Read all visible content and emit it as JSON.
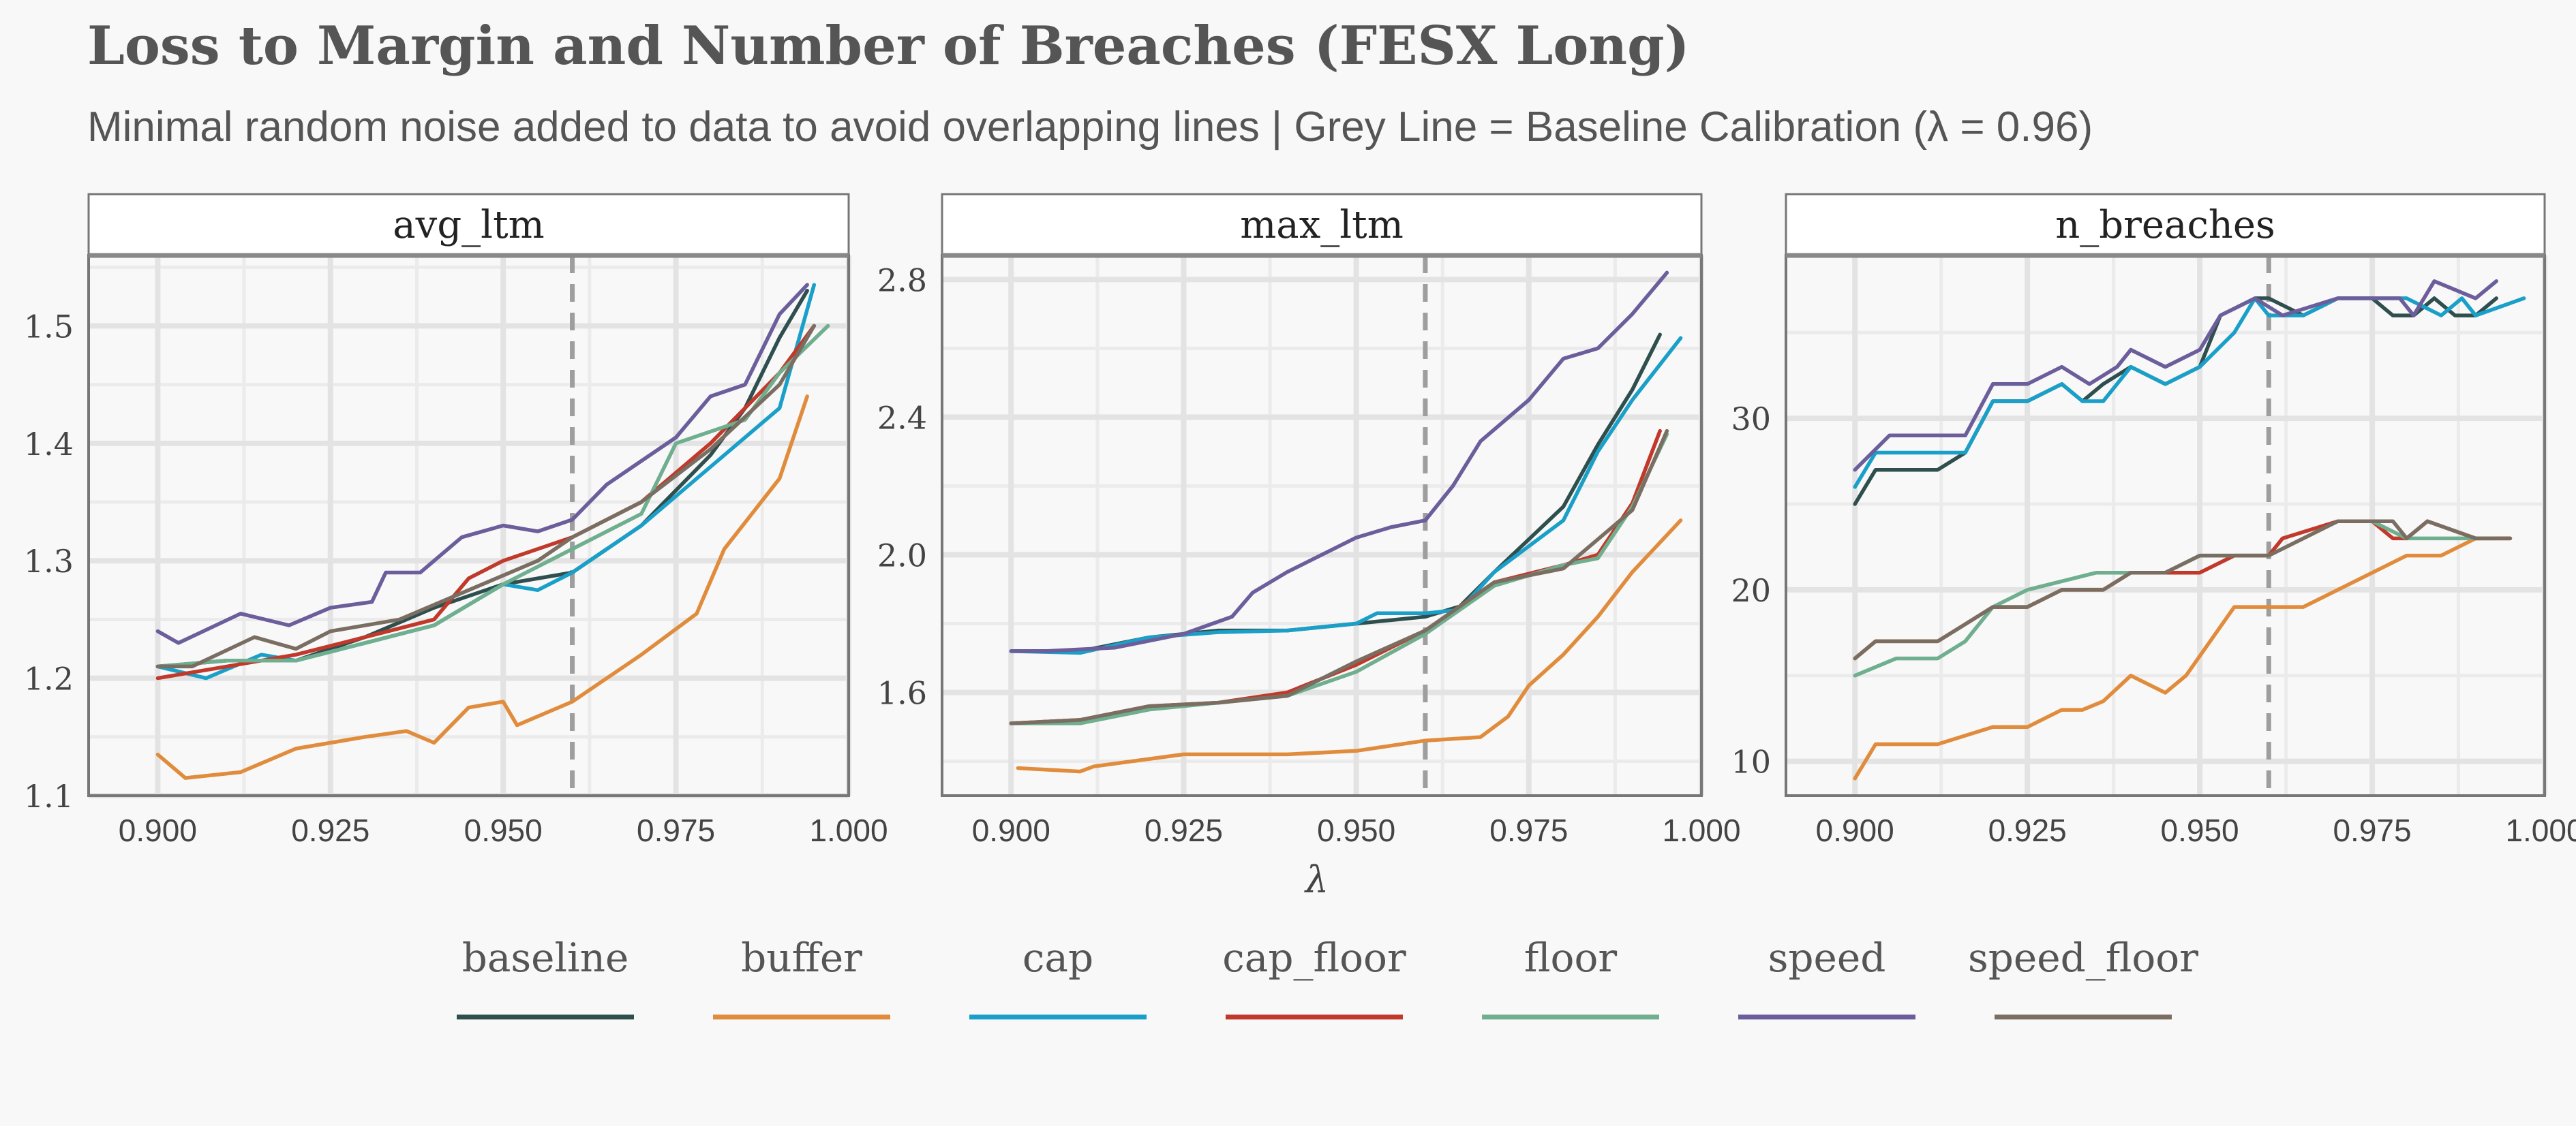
{
  "title": "Loss to Margin and Number of Breaches (FESX Long)",
  "subtitle": "Minimal random noise added to data to avoid overlapping lines | Grey Line = Baseline Calibration (λ = 0.96)",
  "xlabel": "λ",
  "colors": {
    "baseline": "#2f4f4f",
    "buffer": "#e08c3c",
    "cap": "#1aa0c8",
    "cap_floor": "#c0392b",
    "floor": "#6fae8e",
    "speed": "#6b5e9b",
    "speed_floor": "#7a6e62",
    "reference_line": "#9e9e9e"
  },
  "legend": [
    "baseline",
    "buffer",
    "cap",
    "cap_floor",
    "floor",
    "speed",
    "speed_floor"
  ],
  "chart_data": [
    {
      "type": "line",
      "panel": "avg_ltm",
      "xlim": [
        0.89,
        1.0
      ],
      "ylim": [
        1.1,
        1.56
      ],
      "xticks": [
        0.9,
        0.925,
        0.95,
        0.975,
        1.0
      ],
      "xtick_labels": [
        "0.900",
        "0.925",
        "0.950",
        "0.975",
        "1.000"
      ],
      "yticks": [
        1.1,
        1.2,
        1.3,
        1.4,
        1.5
      ],
      "ytick_labels": [
        "1.1",
        "1.2",
        "1.3",
        "1.4",
        "1.5"
      ],
      "reference_x": 0.96,
      "series": [
        {
          "name": "baseline",
          "x": [
            0.9,
            0.91,
            0.92,
            0.93,
            0.94,
            0.95,
            0.96,
            0.97,
            0.98,
            0.985,
            0.99,
            0.994
          ],
          "y": [
            1.21,
            1.215,
            1.215,
            1.235,
            1.26,
            1.28,
            1.29,
            1.33,
            1.39,
            1.43,
            1.49,
            1.53
          ]
        },
        {
          "name": "buffer",
          "x": [
            0.9,
            0.904,
            0.912,
            0.92,
            0.93,
            0.936,
            0.94,
            0.945,
            0.95,
            0.952,
            0.96,
            0.97,
            0.978,
            0.982,
            0.99,
            0.994
          ],
          "y": [
            1.135,
            1.115,
            1.12,
            1.14,
            1.15,
            1.155,
            1.145,
            1.175,
            1.18,
            1.16,
            1.18,
            1.22,
            1.255,
            1.31,
            1.37,
            1.44
          ]
        },
        {
          "name": "cap",
          "x": [
            0.9,
            0.907,
            0.915,
            0.92,
            0.93,
            0.94,
            0.95,
            0.955,
            0.96,
            0.97,
            0.98,
            0.99,
            0.995
          ],
          "y": [
            1.21,
            1.2,
            1.22,
            1.215,
            1.23,
            1.245,
            1.28,
            1.275,
            1.29,
            1.33,
            1.38,
            1.43,
            1.535
          ]
        },
        {
          "name": "cap_floor",
          "x": [
            0.9,
            0.91,
            0.92,
            0.93,
            0.94,
            0.945,
            0.95,
            0.96,
            0.97,
            0.98,
            0.99,
            0.995
          ],
          "y": [
            1.2,
            1.21,
            1.22,
            1.235,
            1.25,
            1.285,
            1.3,
            1.32,
            1.35,
            1.4,
            1.46,
            1.5
          ]
        },
        {
          "name": "floor",
          "x": [
            0.9,
            0.91,
            0.92,
            0.93,
            0.94,
            0.95,
            0.96,
            0.97,
            0.975,
            0.985,
            0.99,
            0.997
          ],
          "y": [
            1.21,
            1.215,
            1.215,
            1.23,
            1.245,
            1.28,
            1.31,
            1.34,
            1.4,
            1.42,
            1.46,
            1.5
          ]
        },
        {
          "name": "speed",
          "x": [
            0.9,
            0.903,
            0.912,
            0.919,
            0.925,
            0.931,
            0.933,
            0.938,
            0.944,
            0.95,
            0.955,
            0.96,
            0.965,
            0.97,
            0.975,
            0.98,
            0.985,
            0.99,
            0.994
          ],
          "y": [
            1.24,
            1.23,
            1.255,
            1.245,
            1.26,
            1.265,
            1.29,
            1.29,
            1.32,
            1.33,
            1.325,
            1.335,
            1.365,
            1.385,
            1.405,
            1.44,
            1.45,
            1.51,
            1.535
          ]
        },
        {
          "name": "speed_floor",
          "x": [
            0.9,
            0.905,
            0.914,
            0.92,
            0.925,
            0.935,
            0.945,
            0.955,
            0.96,
            0.97,
            0.98,
            0.99,
            0.995
          ],
          "y": [
            1.21,
            1.21,
            1.235,
            1.225,
            1.24,
            1.25,
            1.275,
            1.3,
            1.32,
            1.35,
            1.395,
            1.45,
            1.5
          ]
        }
      ]
    },
    {
      "type": "line",
      "panel": "max_ltm",
      "xlim": [
        0.89,
        1.0
      ],
      "ylim": [
        1.3,
        2.87
      ],
      "xticks": [
        0.9,
        0.925,
        0.95,
        0.975,
        1.0
      ],
      "xtick_labels": [
        "0.900",
        "0.925",
        "0.950",
        "0.975",
        "1.000"
      ],
      "yticks": [
        1.6,
        2.0,
        2.4,
        2.8
      ],
      "ytick_labels": [
        "1.6",
        "2.0",
        "2.4",
        "2.8"
      ],
      "reference_x": 0.96,
      "series": [
        {
          "name": "baseline",
          "x": [
            0.9,
            0.91,
            0.92,
            0.93,
            0.94,
            0.95,
            0.96,
            0.965,
            0.97,
            0.98,
            0.985,
            0.99,
            0.994
          ],
          "y": [
            1.72,
            1.72,
            1.76,
            1.78,
            1.78,
            1.8,
            1.82,
            1.85,
            1.95,
            2.14,
            2.32,
            2.48,
            2.64
          ]
        },
        {
          "name": "buffer",
          "x": [
            0.901,
            0.91,
            0.912,
            0.925,
            0.93,
            0.94,
            0.95,
            0.96,
            0.968,
            0.972,
            0.975,
            0.98,
            0.985,
            0.99,
            0.997
          ],
          "y": [
            1.38,
            1.37,
            1.385,
            1.42,
            1.42,
            1.42,
            1.43,
            1.46,
            1.47,
            1.53,
            1.62,
            1.71,
            1.82,
            1.95,
            2.1
          ]
        },
        {
          "name": "cap",
          "x": [
            0.9,
            0.91,
            0.92,
            0.93,
            0.94,
            0.95,
            0.953,
            0.96,
            0.965,
            0.97,
            0.98,
            0.985,
            0.99,
            0.997
          ],
          "y": [
            1.72,
            1.715,
            1.76,
            1.775,
            1.78,
            1.8,
            1.83,
            1.83,
            1.84,
            1.95,
            2.1,
            2.3,
            2.45,
            2.63
          ]
        },
        {
          "name": "cap_floor",
          "x": [
            0.9,
            0.91,
            0.92,
            0.93,
            0.94,
            0.95,
            0.96,
            0.97,
            0.98,
            0.985,
            0.99,
            0.994
          ],
          "y": [
            1.51,
            1.52,
            1.56,
            1.57,
            1.6,
            1.68,
            1.78,
            1.92,
            1.97,
            2.0,
            2.15,
            2.36
          ]
        },
        {
          "name": "floor",
          "x": [
            0.9,
            0.91,
            0.92,
            0.93,
            0.94,
            0.95,
            0.96,
            0.97,
            0.98,
            0.985,
            0.99,
            0.995
          ],
          "y": [
            1.51,
            1.51,
            1.55,
            1.57,
            1.59,
            1.66,
            1.77,
            1.91,
            1.97,
            1.99,
            2.14,
            2.35
          ]
        },
        {
          "name": "speed",
          "x": [
            0.9,
            0.905,
            0.915,
            0.925,
            0.932,
            0.935,
            0.94,
            0.945,
            0.95,
            0.955,
            0.96,
            0.964,
            0.968,
            0.975,
            0.98,
            0.985,
            0.99,
            0.995
          ],
          "y": [
            1.72,
            1.72,
            1.73,
            1.77,
            1.82,
            1.89,
            1.95,
            2.0,
            2.05,
            2.08,
            2.1,
            2.2,
            2.33,
            2.45,
            2.57,
            2.6,
            2.7,
            2.82
          ]
        },
        {
          "name": "speed_floor",
          "x": [
            0.9,
            0.91,
            0.92,
            0.93,
            0.94,
            0.95,
            0.96,
            0.97,
            0.98,
            0.99,
            0.995
          ],
          "y": [
            1.51,
            1.52,
            1.56,
            1.57,
            1.59,
            1.69,
            1.78,
            1.92,
            1.96,
            2.13,
            2.36
          ]
        }
      ]
    },
    {
      "type": "line",
      "panel": "n_breaches",
      "xlim": [
        0.89,
        1.0
      ],
      "ylim": [
        8,
        39.5
      ],
      "xticks": [
        0.9,
        0.925,
        0.95,
        0.975,
        1.0
      ],
      "xtick_labels": [
        "0.900",
        "0.925",
        "0.950",
        "0.975",
        "1.000"
      ],
      "yticks": [
        10,
        20,
        30
      ],
      "ytick_labels": [
        "10",
        "20",
        "30"
      ],
      "reference_x": 0.96,
      "series": [
        {
          "name": "baseline",
          "x": [
            0.9,
            0.903,
            0.912,
            0.916,
            0.92,
            0.925,
            0.93,
            0.933,
            0.936,
            0.94,
            0.945,
            0.95,
            0.953,
            0.958,
            0.96,
            0.965,
            0.97,
            0.975,
            0.978,
            0.981,
            0.984,
            0.987,
            0.99,
            0.993
          ],
          "y": [
            25,
            27,
            27,
            28,
            31,
            31,
            32,
            31,
            32,
            33,
            32,
            33,
            36,
            37,
            37,
            36,
            37,
            37,
            36,
            36,
            37,
            36,
            36,
            37
          ]
        },
        {
          "name": "buffer",
          "x": [
            0.9,
            0.903,
            0.912,
            0.916,
            0.92,
            0.925,
            0.93,
            0.933,
            0.936,
            0.94,
            0.945,
            0.948,
            0.955,
            0.958,
            0.96,
            0.965,
            0.97,
            0.98,
            0.985,
            0.99,
            0.995
          ],
          "y": [
            9,
            11,
            11,
            11.5,
            12,
            12,
            13,
            13,
            13.5,
            15,
            14,
            15,
            19,
            19,
            19,
            19,
            20,
            22,
            22,
            23,
            23
          ]
        },
        {
          "name": "cap",
          "x": [
            0.9,
            0.903,
            0.912,
            0.916,
            0.92,
            0.925,
            0.93,
            0.933,
            0.936,
            0.94,
            0.945,
            0.95,
            0.955,
            0.958,
            0.96,
            0.965,
            0.97,
            0.975,
            0.98,
            0.985,
            0.988,
            0.99,
            0.997
          ],
          "y": [
            26,
            28,
            28,
            28,
            31,
            31,
            32,
            31,
            31,
            33,
            32,
            33,
            35,
            37,
            36,
            36,
            37,
            37,
            37,
            36,
            37,
            36,
            37
          ]
        },
        {
          "name": "cap_floor",
          "x": [
            0.9,
            0.903,
            0.912,
            0.916,
            0.92,
            0.925,
            0.93,
            0.936,
            0.94,
            0.945,
            0.95,
            0.955,
            0.96,
            0.962,
            0.97,
            0.975,
            0.978,
            0.98,
            0.983,
            0.99,
            0.995
          ],
          "y": [
            16,
            17,
            17,
            18,
            19,
            19,
            20,
            20,
            21,
            21,
            21,
            22,
            22,
            23,
            24,
            24,
            23,
            23,
            24,
            23,
            23
          ]
        },
        {
          "name": "floor",
          "x": [
            0.9,
            0.906,
            0.912,
            0.916,
            0.92,
            0.925,
            0.935,
            0.94,
            0.945,
            0.95,
            0.955,
            0.96,
            0.97,
            0.975,
            0.98,
            0.985,
            0.99,
            0.993
          ],
          "y": [
            15,
            16,
            16,
            17,
            19,
            20,
            21,
            21,
            21,
            22,
            22,
            22,
            24,
            24,
            23,
            23,
            23,
            23
          ]
        },
        {
          "name": "speed",
          "x": [
            0.9,
            0.905,
            0.912,
            0.916,
            0.92,
            0.925,
            0.93,
            0.934,
            0.938,
            0.94,
            0.945,
            0.95,
            0.953,
            0.958,
            0.962,
            0.97,
            0.976,
            0.979,
            0.981,
            0.984,
            0.99,
            0.993
          ],
          "y": [
            27,
            29,
            29,
            29,
            32,
            32,
            33,
            32,
            33,
            34,
            33,
            34,
            36,
            37,
            36,
            37,
            37,
            37,
            36,
            38,
            37,
            38
          ]
        },
        {
          "name": "speed_floor",
          "x": [
            0.9,
            0.903,
            0.912,
            0.916,
            0.92,
            0.925,
            0.93,
            0.936,
            0.94,
            0.945,
            0.95,
            0.955,
            0.96,
            0.965,
            0.97,
            0.975,
            0.978,
            0.98,
            0.983,
            0.99,
            0.995
          ],
          "y": [
            16,
            17,
            17,
            18,
            19,
            19,
            20,
            20,
            21,
            21,
            22,
            22,
            22,
            23,
            24,
            24,
            24,
            23,
            24,
            23,
            23
          ]
        }
      ]
    }
  ]
}
